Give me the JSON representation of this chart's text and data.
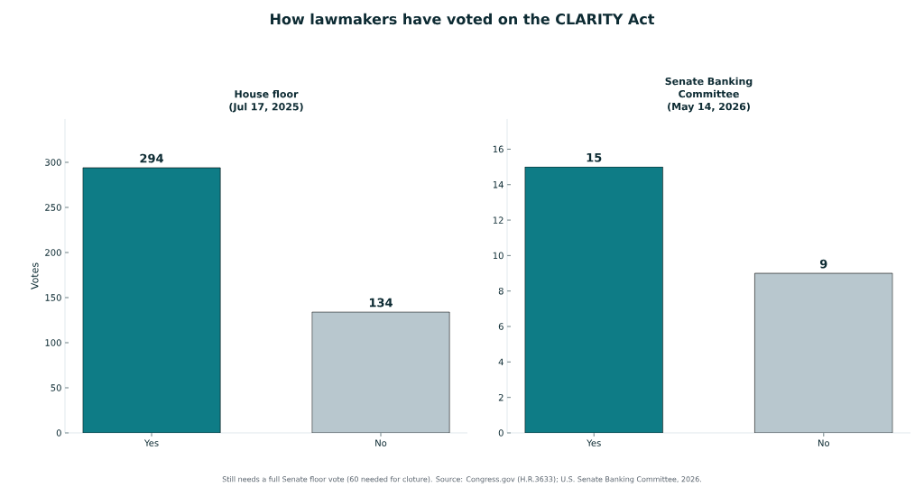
{
  "chart_data": [
    {
      "type": "bar",
      "title": "House floor",
      "subtitle": "(Jul 17, 2025)",
      "ylabel": "Votes",
      "categories": [
        "Yes",
        "No"
      ],
      "values": [
        294,
        134
      ],
      "colors": [
        "#0e7c86",
        "#b8c7ce"
      ],
      "ylim": [
        0,
        348
      ],
      "yticks": [
        0,
        50,
        100,
        150,
        200,
        250,
        300
      ],
      "data_labels": true,
      "grid": false,
      "annotations": [
        "How lawmakers have voted on the CLARITY Act",
        "Still needs a full Senate floor vote (60 needed for cloture). Source: Congress.gov (H.R.3633); U.S. Senate Banking Committee, 2026."
      ]
    },
    {
      "type": "bar",
      "title": "Senate Banking Committee",
      "subtitle": "(May 14, 2026)",
      "categories": [
        "Yes",
        "No"
      ],
      "values": [
        15,
        9
      ],
      "colors": [
        "#0e7c86",
        "#b8c7ce"
      ],
      "ylim": [
        0,
        17.7
      ],
      "yticks": [
        0,
        2,
        4,
        6,
        8,
        10,
        12,
        14,
        16
      ],
      "data_labels": true,
      "grid": false
    }
  ]
}
